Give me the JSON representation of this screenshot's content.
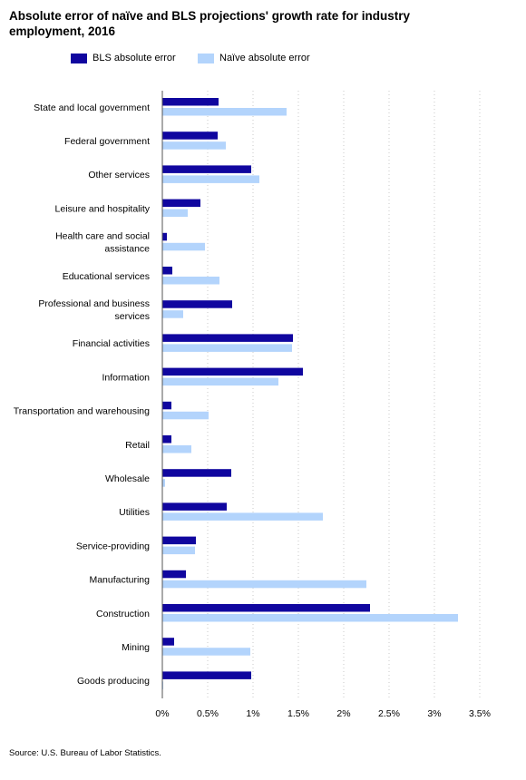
{
  "chart_data": {
    "type": "bar",
    "orientation": "horizontal",
    "title": "Absolute error of naïve and BLS projections' growth rate for industry employment, 2016",
    "categories": [
      "State and local government",
      "Federal government",
      "Other services",
      "Leisure and hospitality",
      "Health care and social assistance",
      "Educational services",
      "Professional and business services",
      "Financial activities",
      "Information",
      "Transportation and warehousing",
      "Retail",
      "Wholesale",
      "Utilities",
      "Service-providing",
      "Manufacturing",
      "Construction",
      "Mining",
      "Goods producing"
    ],
    "series": [
      {
        "name": "BLS absolute error",
        "color": "#10069f",
        "values": [
          0.62,
          0.61,
          0.98,
          0.42,
          0.05,
          0.11,
          0.77,
          1.44,
          1.55,
          0.1,
          0.1,
          0.76,
          0.71,
          0.37,
          0.26,
          2.29,
          0.13,
          0.98
        ]
      },
      {
        "name": "Naïve absolute error",
        "color": "#b3d4fc",
        "values": [
          1.37,
          0.7,
          1.07,
          0.28,
          0.47,
          0.63,
          0.23,
          1.43,
          1.28,
          0.51,
          0.32,
          0.03,
          1.77,
          0.36,
          2.25,
          3.26,
          0.97,
          0.01
        ]
      }
    ],
    "xlim": [
      0,
      3.5
    ],
    "xticks": [
      "0%",
      "0.5%",
      "1%",
      "1.5%",
      "2%",
      "2.5%",
      "3%",
      "3.5%"
    ],
    "xtick_values": [
      0,
      0.5,
      1,
      1.5,
      2,
      2.5,
      3,
      3.5
    ],
    "xlabel": "",
    "ylabel": "",
    "grid": "vertical dotted",
    "legend": "top"
  },
  "source": "Source: U.S. Bureau of Labor Statistics."
}
